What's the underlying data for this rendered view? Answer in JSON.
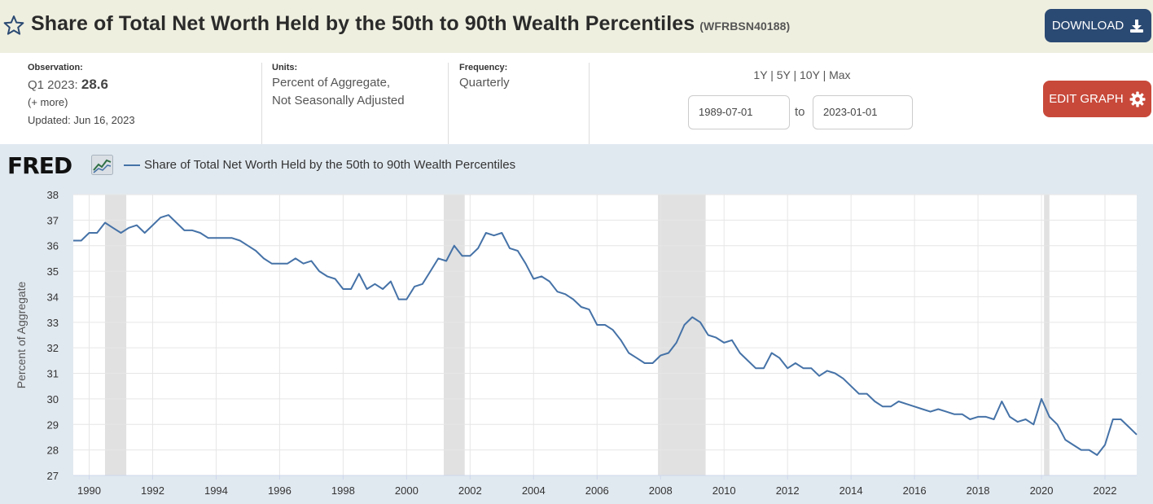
{
  "header": {
    "title": "Share of Total Net Worth Held by the 50th to 90th Wealth Percentiles",
    "series_id": "(WFRBSN40188)",
    "download_label": "DOWNLOAD"
  },
  "meta": {
    "observation_label": "Observation:",
    "observation_period": "Q1 2023:",
    "observation_value": "28.6",
    "more_link": "(+ more)",
    "updated": "Updated: Jun 16, 2023",
    "units_label": "Units:",
    "units_line1": "Percent of Aggregate,",
    "units_line2": "Not Seasonally Adjusted",
    "frequency_label": "Frequency:",
    "frequency_value": "Quarterly"
  },
  "controls": {
    "range_1y": "1Y",
    "range_5y": "5Y",
    "range_10y": "10Y",
    "range_max": "Max",
    "sep": "|",
    "start_date": "1989-07-01",
    "to_label": "to",
    "end_date": "2023-01-01",
    "edit_label": "EDIT GRAPH"
  },
  "logo": {
    "text": "FRED"
  },
  "colors": {
    "line": "#4572a7",
    "recession": "#e1e1e1",
    "grid": "#e6e6e6",
    "download_bg": "#2b4a73",
    "edit_bg": "#c8493a"
  },
  "chart_data": {
    "type": "line",
    "title": "",
    "xlabel": "",
    "ylabel": "Percent of Aggregate",
    "ylim": [
      27,
      38
    ],
    "xlim": [
      1989.5,
      2023.0
    ],
    "y_ticks": [
      27,
      28,
      29,
      30,
      31,
      32,
      33,
      34,
      35,
      36,
      37,
      38
    ],
    "x_ticks": [
      1990,
      1992,
      1994,
      1996,
      1998,
      2000,
      2002,
      2004,
      2006,
      2008,
      2010,
      2012,
      2014,
      2016,
      2018,
      2020,
      2022
    ],
    "grid": true,
    "legend": "top-left",
    "recessions": [
      [
        1990.5,
        1991.17
      ],
      [
        2001.17,
        2001.83
      ],
      [
        2007.92,
        2009.42
      ],
      [
        2020.08,
        2020.25
      ]
    ],
    "series": [
      {
        "name": "Share of Total Net Worth Held by the 50th to 90th Wealth Percentiles",
        "x": [
          1989.5,
          1989.75,
          1990.0,
          1990.25,
          1990.5,
          1990.75,
          1991.0,
          1991.25,
          1991.5,
          1991.75,
          1992.0,
          1992.25,
          1992.5,
          1992.75,
          1993.0,
          1993.25,
          1993.5,
          1993.75,
          1994.0,
          1994.25,
          1994.5,
          1994.75,
          1995.0,
          1995.25,
          1995.5,
          1995.75,
          1996.0,
          1996.25,
          1996.5,
          1996.75,
          1997.0,
          1997.25,
          1997.5,
          1997.75,
          1998.0,
          1998.25,
          1998.5,
          1998.75,
          1999.0,
          1999.25,
          1999.5,
          1999.75,
          2000.0,
          2000.25,
          2000.5,
          2000.75,
          2001.0,
          2001.25,
          2001.5,
          2001.75,
          2002.0,
          2002.25,
          2002.5,
          2002.75,
          2003.0,
          2003.25,
          2003.5,
          2003.75,
          2004.0,
          2004.25,
          2004.5,
          2004.75,
          2005.0,
          2005.25,
          2005.5,
          2005.75,
          2006.0,
          2006.25,
          2006.5,
          2006.75,
          2007.0,
          2007.25,
          2007.5,
          2007.75,
          2008.0,
          2008.25,
          2008.5,
          2008.75,
          2009.0,
          2009.25,
          2009.5,
          2009.75,
          2010.0,
          2010.25,
          2010.5,
          2010.75,
          2011.0,
          2011.25,
          2011.5,
          2011.75,
          2012.0,
          2012.25,
          2012.5,
          2012.75,
          2013.0,
          2013.25,
          2013.5,
          2013.75,
          2014.0,
          2014.25,
          2014.5,
          2014.75,
          2015.0,
          2015.25,
          2015.5,
          2015.75,
          2016.0,
          2016.25,
          2016.5,
          2016.75,
          2017.0,
          2017.25,
          2017.5,
          2017.75,
          2018.0,
          2018.25,
          2018.5,
          2018.75,
          2019.0,
          2019.25,
          2019.5,
          2019.75,
          2020.0,
          2020.25,
          2020.5,
          2020.75,
          2021.0,
          2021.25,
          2021.5,
          2021.75,
          2022.0,
          2022.25,
          2022.5,
          2022.75,
          2023.0
        ],
        "values": [
          36.2,
          36.2,
          36.5,
          36.5,
          36.9,
          36.7,
          36.5,
          36.7,
          36.8,
          36.5,
          36.8,
          37.1,
          37.2,
          36.9,
          36.6,
          36.6,
          36.5,
          36.3,
          36.3,
          36.3,
          36.3,
          36.2,
          36.0,
          35.8,
          35.5,
          35.3,
          35.3,
          35.3,
          35.5,
          35.3,
          35.4,
          35.0,
          34.8,
          34.7,
          34.3,
          34.3,
          34.9,
          34.3,
          34.5,
          34.3,
          34.6,
          33.9,
          33.9,
          34.4,
          34.5,
          35.0,
          35.5,
          35.4,
          36.0,
          35.6,
          35.6,
          35.9,
          36.5,
          36.4,
          36.5,
          35.9,
          35.8,
          35.3,
          34.7,
          34.8,
          34.6,
          34.2,
          34.1,
          33.9,
          33.6,
          33.5,
          32.9,
          32.9,
          32.7,
          32.3,
          31.8,
          31.6,
          31.4,
          31.4,
          31.7,
          31.8,
          32.2,
          32.9,
          33.2,
          33.0,
          32.5,
          32.4,
          32.2,
          32.3,
          31.8,
          31.5,
          31.2,
          31.2,
          31.8,
          31.6,
          31.2,
          31.4,
          31.2,
          31.2,
          30.9,
          31.1,
          31.0,
          30.8,
          30.5,
          30.2,
          30.2,
          29.9,
          29.7,
          29.7,
          29.9,
          29.8,
          29.7,
          29.6,
          29.5,
          29.6,
          29.5,
          29.4,
          29.4,
          29.2,
          29.3,
          29.3,
          29.2,
          29.9,
          29.3,
          29.1,
          29.2,
          29.0,
          30.0,
          29.3,
          29.0,
          28.4,
          28.2,
          28.0,
          28.0,
          27.8,
          28.2,
          29.2,
          29.2,
          28.9,
          28.6
        ]
      }
    ]
  }
}
